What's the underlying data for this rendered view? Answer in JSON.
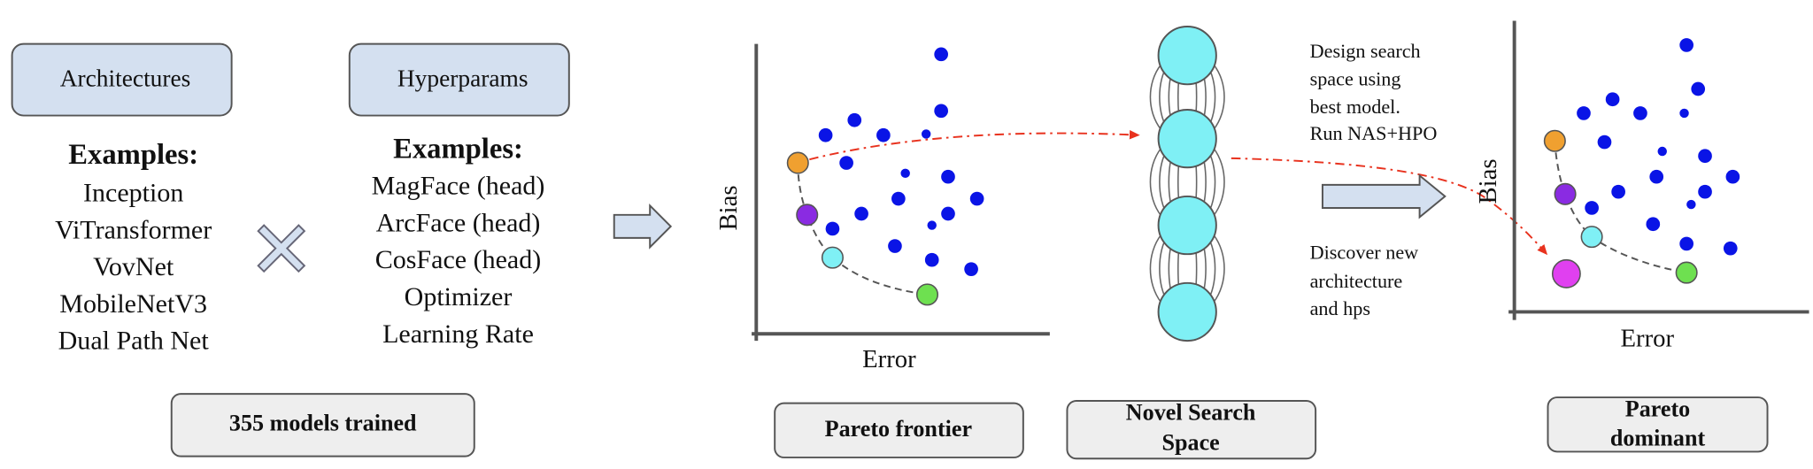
{
  "architectures": {
    "title": "Architectures",
    "heading": "Examples:",
    "items": [
      "Inception",
      "ViTransformer",
      "VovNet",
      "MobileNetV3",
      "Dual Path Net"
    ]
  },
  "hyperparams": {
    "title": "Hyperparams",
    "heading": "Examples:",
    "items": [
      "MagFace (head)",
      "ArcFace (head)",
      "CosFace (head)",
      "Optimizer",
      "Learning Rate"
    ]
  },
  "models_caption": "355 models trained",
  "pareto_plot": {
    "y_label": "Bias",
    "x_label": "Error",
    "caption": "Pareto frontier"
  },
  "search_space": {
    "caption": [
      "Novel Search",
      "Space"
    ]
  },
  "notes": {
    "design": [
      "Design search",
      "space using",
      "best model.",
      "Run NAS+HPO"
    ],
    "discover": [
      "Discover  new",
      "architecture",
      "and  hps"
    ]
  },
  "dominant_plot": {
    "y_label": "Bias",
    "x_label": "Error",
    "caption": [
      "Pareto",
      "dominant"
    ]
  }
}
